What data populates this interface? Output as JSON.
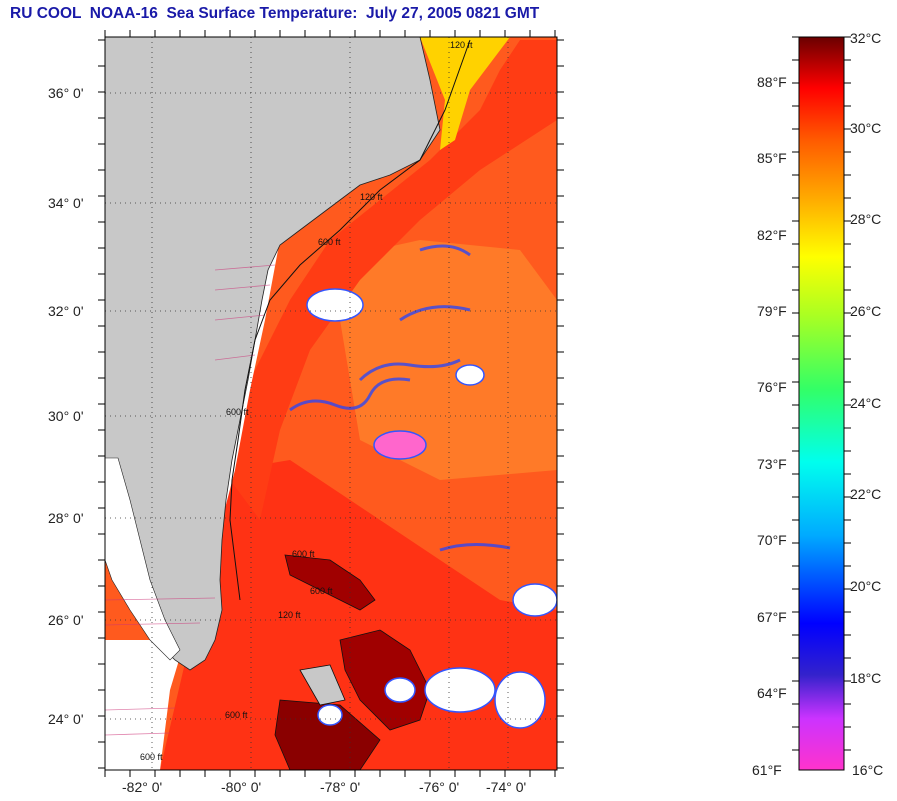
{
  "title": "RU COOL  NOAA-16  Sea Surface Temperature:  July 27, 2005 0821 GMT",
  "map": {
    "lat_labels": [
      "36° 0'",
      "34° 0'",
      "32° 0'",
      "30° 0'",
      "28° 0'",
      "26° 0'",
      "24° 0'"
    ],
    "lon_labels": [
      "-82° 0'",
      "-80° 0'",
      "-78° 0'",
      "-76° 0'",
      "-74° 0'"
    ],
    "colors": {
      "land": "#c8c8c8",
      "ocean_warm": "#ff5a1e",
      "ocean_hot": "#ff2a10",
      "cloud": "#ffffff",
      "grid": "#333333"
    },
    "contour_labels": [
      "120 ft",
      "600 ft",
      "120 ft",
      "600 ft",
      "600 ft",
      "600 ft",
      "120 ft",
      "600 ft",
      "600 ft"
    ]
  },
  "colorbar": {
    "celsius": [
      "32°C",
      "30°C",
      "28°C",
      "26°C",
      "24°C",
      "22°C",
      "20°C",
      "18°C",
      "16°C"
    ],
    "fahrenheit": [
      "88°F",
      "85°F",
      "82°F",
      "79°F",
      "76°F",
      "73°F",
      "70°F",
      "67°F",
      "64°F",
      "61°F"
    ]
  }
}
